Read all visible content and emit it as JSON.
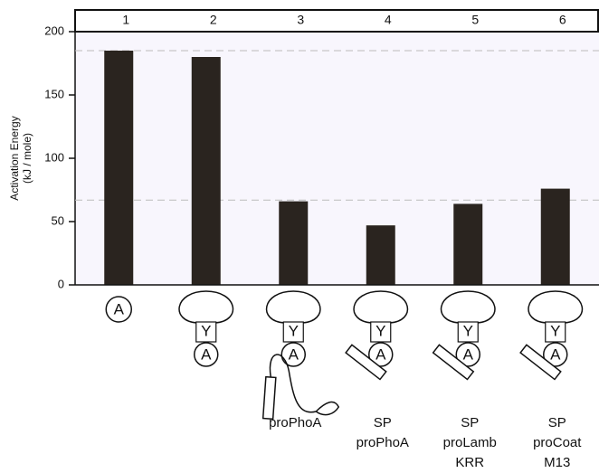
{
  "chart_data": {
    "type": "bar",
    "ylabel": [
      "Activation Energy",
      "(kJ / mole)"
    ],
    "categories": [
      "1",
      "2",
      "3",
      "4",
      "5",
      "6"
    ],
    "values": [
      185,
      180,
      66,
      47,
      64,
      76
    ],
    "color": "#2a241f",
    "ylim": [
      0,
      200
    ],
    "yticks": [
      0,
      50,
      100,
      150,
      200
    ],
    "reference_lines": [
      185,
      67
    ],
    "diagram_letters": [
      "A",
      "Y"
    ],
    "descriptions": [
      [],
      [],
      [
        "proPhoA"
      ],
      [
        "SP",
        "proPhoA"
      ],
      [
        "SP",
        "proLamb",
        "KRR"
      ],
      [
        "SP",
        "proCoat",
        "M13"
      ]
    ]
  }
}
